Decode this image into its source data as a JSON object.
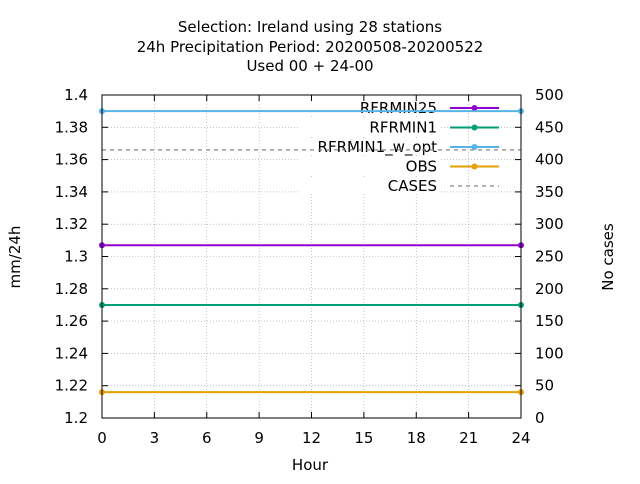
{
  "chart_data": {
    "type": "line",
    "title_lines": [
      "Selection: Ireland using    28 stations",
      "24h Precipitation   Period: 20200508-20200522",
      "Used  00 + 24-00"
    ],
    "xlabel": "Hour",
    "ylabel": "mm/24h",
    "y2label": "No cases",
    "xlim": [
      0,
      24
    ],
    "ylim": [
      1.2,
      1.4
    ],
    "y2lim": [
      0,
      500
    ],
    "x_ticks": [
      0,
      3,
      6,
      9,
      12,
      15,
      18,
      21,
      24
    ],
    "y_ticks": [
      "1.2",
      "1.22",
      "1.24",
      "1.26",
      "1.28",
      "1.3",
      "1.32",
      "1.34",
      "1.36",
      "1.38",
      "1.4"
    ],
    "y2_ticks": [
      0,
      50,
      100,
      150,
      200,
      250,
      300,
      350,
      400,
      450,
      500
    ],
    "grid": true,
    "legend_position": "top-right",
    "series": [
      {
        "name": "RFRMIN25",
        "color": "#9400d3",
        "axis": "y",
        "marker": "point",
        "dashed": false,
        "x": [
          0,
          24
        ],
        "y": [
          1.307,
          1.307
        ]
      },
      {
        "name": "RFRMIN1",
        "color": "#009e73",
        "axis": "y",
        "marker": "point",
        "dashed": false,
        "x": [
          0,
          24
        ],
        "y": [
          1.27,
          1.27
        ]
      },
      {
        "name": "RFRMIN1_w_opt",
        "color": "#56b4e9",
        "axis": "y",
        "marker": "point",
        "dashed": false,
        "x": [
          0,
          24
        ],
        "y": [
          1.39,
          1.39
        ]
      },
      {
        "name": "OBS",
        "color": "#e69f00",
        "axis": "y",
        "marker": "point",
        "dashed": false,
        "x": [
          0,
          24
        ],
        "y": [
          1.216,
          1.216
        ]
      },
      {
        "name": "CASES",
        "color": "#888888",
        "axis": "y2",
        "marker": "none",
        "dashed": true,
        "x": [
          0,
          24
        ],
        "y": [
          415,
          415
        ]
      }
    ]
  }
}
